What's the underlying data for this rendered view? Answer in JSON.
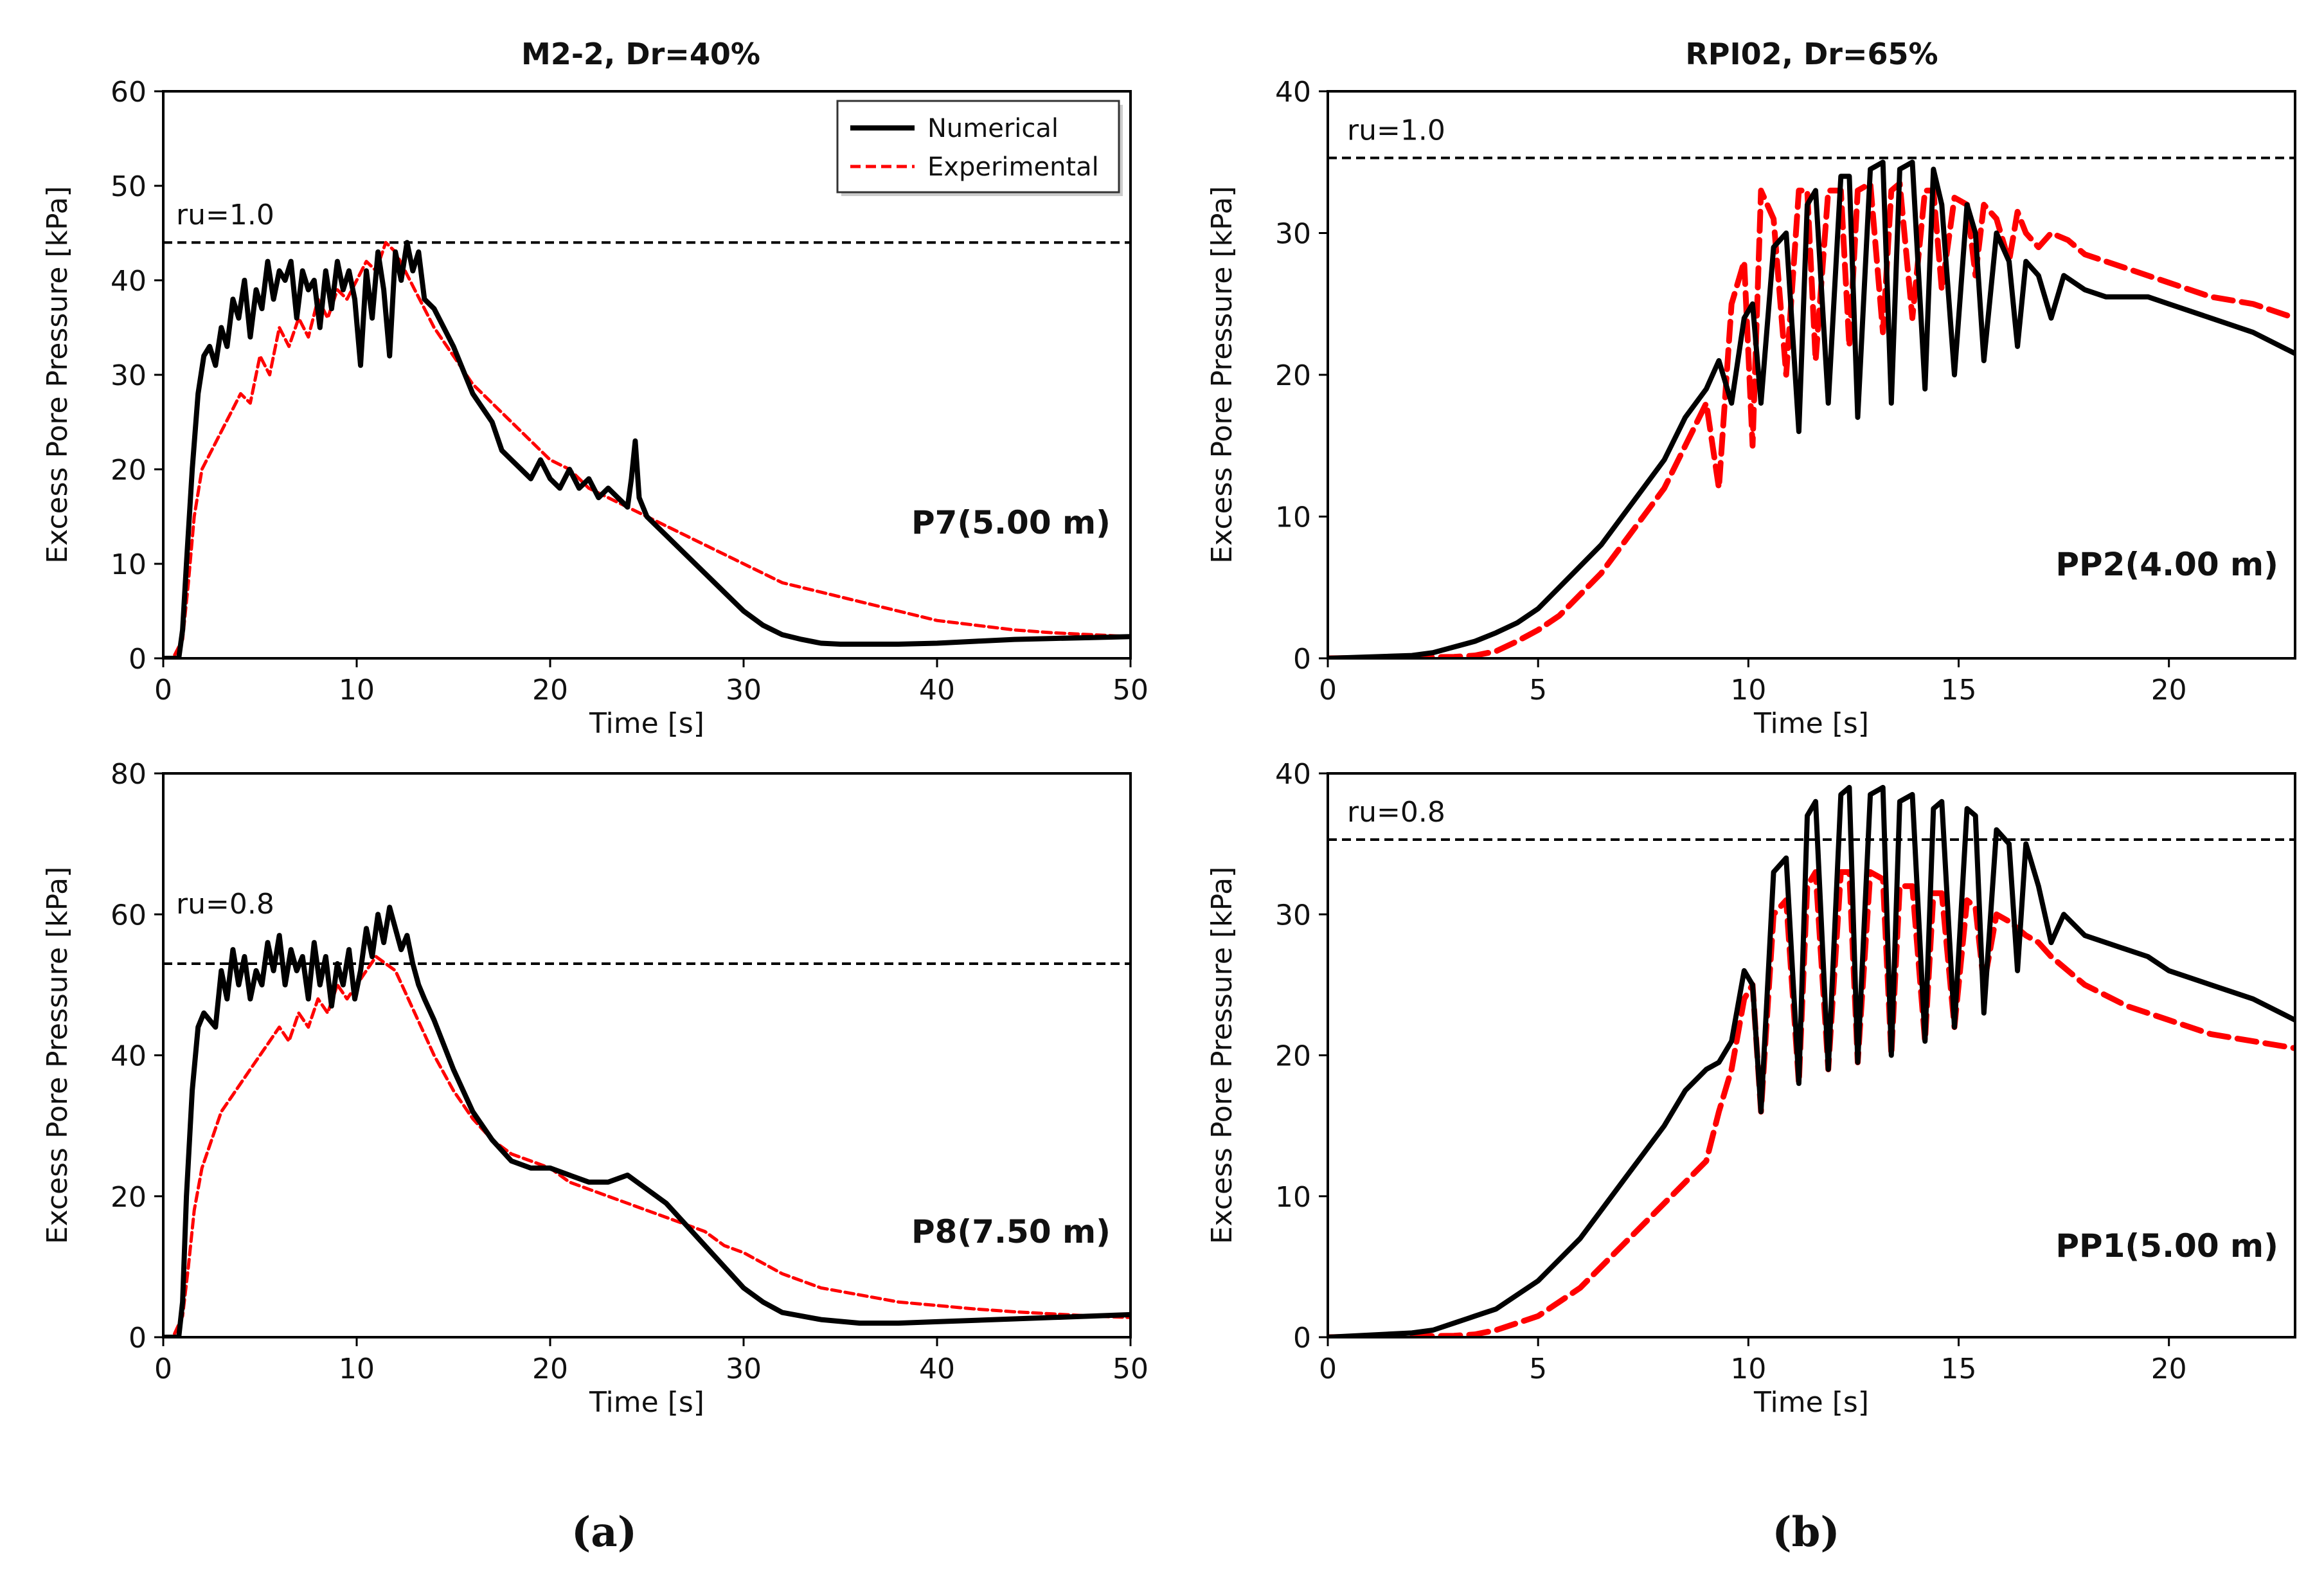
{
  "figure": {
    "column_titles": [
      "M2-2, Dr=40%",
      "RPI02, Dr=65%"
    ],
    "subfigure_labels": [
      "(a)",
      "(b)"
    ],
    "colors": {
      "numerical": "#000000",
      "experimental": "#ff0000",
      "reference": "#000000"
    }
  },
  "chart_data": [
    {
      "type": "line",
      "id": "a-top",
      "title": "M2-2, Dr=40%",
      "xlabel": "Time [s]",
      "ylabel": "Excess Pore Pressure [kPa]",
      "xlim": [
        0,
        50
      ],
      "ylim": [
        0,
        60
      ],
      "xticks": [
        0,
        10,
        20,
        30,
        40,
        50
      ],
      "yticks": [
        0,
        10,
        20,
        30,
        40,
        50,
        60
      ],
      "grid": false,
      "legend": {
        "placement": "top-right",
        "entries": [
          "Numerical",
          "Experimental"
        ]
      },
      "reference_line": {
        "y": 44,
        "label": "ru=1.0"
      },
      "annotation": "P7(5.00 m)",
      "series": [
        {
          "name": "Numerical",
          "x": [
            0,
            0.8,
            1.0,
            1.2,
            1.5,
            1.8,
            2.1,
            2.4,
            2.7,
            3,
            3.3,
            3.6,
            3.9,
            4.2,
            4.5,
            4.8,
            5.1,
            5.4,
            5.7,
            6,
            6.3,
            6.6,
            6.9,
            7.2,
            7.5,
            7.8,
            8.1,
            8.4,
            8.7,
            9,
            9.3,
            9.6,
            9.9,
            10.2,
            10.5,
            10.8,
            11.1,
            11.4,
            11.7,
            12,
            12.3,
            12.6,
            12.9,
            13.2,
            13.5,
            14,
            15,
            16,
            17,
            17.5,
            18,
            18.5,
            19,
            19.5,
            20,
            20.5,
            21,
            21.5,
            22,
            22.5,
            23,
            23.5,
            24,
            24.2,
            24.4,
            24.6,
            25,
            26,
            27,
            28,
            29,
            30,
            31,
            32,
            33,
            34,
            35,
            36,
            38,
            40,
            42,
            44,
            46,
            48,
            50
          ],
          "y": [
            0,
            0,
            3,
            10,
            20,
            28,
            32,
            33,
            31,
            35,
            33,
            38,
            36,
            40,
            34,
            39,
            37,
            42,
            38,
            41,
            40,
            42,
            36,
            41,
            39,
            40,
            35,
            41,
            37,
            42,
            39,
            41,
            38,
            31,
            41,
            36,
            43,
            39,
            32,
            43,
            40,
            44,
            41,
            43,
            38,
            37,
            33,
            28,
            25,
            22,
            21,
            20,
            19,
            21,
            19,
            18,
            20,
            18,
            19,
            17,
            18,
            17,
            16,
            19,
            23,
            17,
            15,
            13,
            11,
            9,
            7,
            5,
            3.5,
            2.5,
            2,
            1.6,
            1.5,
            1.5,
            1.5,
            1.6,
            1.8,
            2.0,
            2.1,
            2.2,
            2.3
          ]
        },
        {
          "name": "Experimental",
          "x": [
            0,
            0.5,
            1.0,
            1.3,
            1.6,
            2,
            2.5,
            3,
            3.5,
            4,
            4.5,
            5,
            5.5,
            6,
            6.5,
            7,
            7.5,
            8,
            8.5,
            9,
            9.5,
            10,
            10.5,
            11,
            11.5,
            12,
            12.5,
            13,
            13.5,
            14,
            15,
            16,
            17,
            18,
            19,
            20,
            21,
            22,
            23,
            24,
            25,
            26,
            27,
            28,
            29,
            30,
            32,
            34,
            36,
            38,
            40,
            42,
            44,
            46,
            48,
            50
          ],
          "y": [
            0,
            0,
            2,
            8,
            15,
            20,
            22,
            24,
            26,
            28,
            27,
            32,
            30,
            35,
            33,
            36,
            34,
            38,
            36,
            39,
            38,
            40,
            42,
            41,
            44,
            43,
            41,
            39,
            37,
            35,
            32,
            29,
            27,
            25,
            23,
            21,
            20,
            18,
            17,
            16,
            15,
            14,
            13,
            12,
            11,
            10,
            8,
            7,
            6,
            5,
            4,
            3.5,
            3,
            2.7,
            2.5,
            2.3
          ]
        }
      ]
    },
    {
      "type": "line",
      "id": "b-top",
      "title": "RPI02, Dr=65%",
      "xlabel": "Time [s]",
      "ylabel": "Excess Pore Pressure [kPa]",
      "xlim": [
        0,
        23
      ],
      "ylim": [
        0,
        40
      ],
      "xticks": [
        0,
        5,
        10,
        15,
        20
      ],
      "yticks": [
        0,
        10,
        20,
        30,
        40
      ],
      "grid": false,
      "reference_line": {
        "y": 35.3,
        "label": "ru=1.0"
      },
      "annotation": "PP2(4.00 m)",
      "series": [
        {
          "name": "Numerical",
          "x": [
            0,
            2,
            2.5,
            3,
            3.5,
            4,
            4.5,
            5,
            5.5,
            6,
            6.5,
            7,
            7.5,
            8,
            8.5,
            9,
            9.3,
            9.6,
            9.9,
            10.1,
            10.3,
            10.6,
            10.9,
            11.2,
            11.4,
            11.6,
            11.9,
            12.2,
            12.4,
            12.6,
            12.9,
            13.2,
            13.4,
            13.6,
            13.9,
            14.2,
            14.4,
            14.6,
            14.9,
            15.2,
            15.4,
            15.6,
            15.9,
            16.2,
            16.4,
            16.6,
            16.9,
            17.2,
            17.5,
            18,
            18.5,
            19,
            19.5,
            20,
            21,
            22,
            23
          ],
          "y": [
            0,
            0.2,
            0.4,
            0.8,
            1.2,
            1.8,
            2.5,
            3.5,
            5,
            6.5,
            8,
            10,
            12,
            14,
            17,
            19,
            21,
            18,
            24,
            25,
            18,
            29,
            30,
            16,
            32,
            33,
            18,
            34,
            34,
            17,
            34.5,
            35,
            18,
            34.5,
            35,
            19,
            34.5,
            32,
            20,
            32,
            30,
            21,
            30,
            28,
            22,
            28,
            27,
            24,
            27,
            26,
            25.5,
            25.5,
            25.5,
            25,
            24,
            23,
            21.5
          ]
        },
        {
          "name": "Experimental",
          "x": [
            0,
            3,
            3.5,
            4,
            4.5,
            5,
            5.5,
            6,
            6.5,
            7,
            7.5,
            8,
            8.5,
            9,
            9.3,
            9.6,
            9.9,
            10.1,
            10.3,
            10.6,
            10.9,
            11.2,
            11.4,
            11.6,
            11.9,
            12.2,
            12.4,
            12.6,
            12.9,
            13.2,
            13.4,
            13.6,
            13.9,
            14.2,
            14.4,
            14.6,
            14.9,
            15.2,
            15.4,
            15.6,
            15.9,
            16.2,
            16.4,
            16.6,
            16.9,
            17.2,
            17.6,
            18,
            19,
            20,
            21,
            22,
            23
          ],
          "y": [
            0,
            0.1,
            0.2,
            0.5,
            1.2,
            2,
            3,
            4.5,
            6,
            8,
            10,
            12,
            15,
            18,
            12,
            25,
            28,
            15,
            33,
            31,
            20,
            33,
            33,
            21,
            33,
            33,
            22,
            33,
            33.5,
            23,
            33,
            33.5,
            24,
            33,
            33,
            26,
            32.5,
            32,
            27,
            32,
            31,
            28,
            31.5,
            30,
            29,
            30,
            29.5,
            28.5,
            27.5,
            26.5,
            25.5,
            25,
            24
          ]
        }
      ]
    },
    {
      "type": "line",
      "id": "a-bottom",
      "xlabel": "Time [s]",
      "ylabel": "Excess Pore Pressure [kPa]",
      "xlim": [
        0,
        50
      ],
      "ylim": [
        0,
        80
      ],
      "xticks": [
        0,
        10,
        20,
        30,
        40,
        50
      ],
      "yticks": [
        0,
        20,
        40,
        60,
        80
      ],
      "grid": false,
      "reference_line": {
        "y": 53,
        "label": "ru=0.8"
      },
      "annotation": "P8(7.50 m)",
      "series": [
        {
          "name": "Numerical",
          "x": [
            0,
            0.8,
            1.0,
            1.2,
            1.5,
            1.8,
            2.1,
            2.4,
            2.7,
            3,
            3.3,
            3.6,
            3.9,
            4.2,
            4.5,
            4.8,
            5.1,
            5.4,
            5.7,
            6,
            6.3,
            6.6,
            6.9,
            7.2,
            7.5,
            7.8,
            8.1,
            8.4,
            8.7,
            9,
            9.3,
            9.6,
            9.9,
            10.2,
            10.5,
            10.8,
            11.1,
            11.4,
            11.7,
            12,
            12.3,
            12.6,
            12.9,
            13.2,
            13.5,
            14,
            15,
            16,
            17,
            18,
            19,
            20,
            21,
            22,
            23,
            24,
            24.5,
            25,
            26,
            27,
            28,
            29,
            30,
            31,
            32,
            34,
            36,
            38,
            40,
            42,
            44,
            46,
            48,
            50
          ],
          "y": [
            0,
            0,
            5,
            20,
            35,
            44,
            46,
            45,
            44,
            52,
            48,
            55,
            50,
            54,
            48,
            52,
            50,
            56,
            52,
            57,
            50,
            55,
            52,
            54,
            48,
            56,
            50,
            54,
            47,
            53,
            50,
            55,
            48,
            52,
            58,
            54,
            60,
            56,
            61,
            58,
            55,
            57,
            53,
            50,
            48,
            45,
            38,
            32,
            28,
            25,
            24,
            24,
            23,
            22,
            22,
            23,
            22,
            21,
            19,
            16,
            13,
            10,
            7,
            5,
            3.5,
            2.5,
            2,
            2,
            2.2,
            2.4,
            2.6,
            2.8,
            3,
            3.2
          ]
        },
        {
          "name": "Experimental",
          "x": [
            0,
            0.5,
            1.0,
            1.3,
            1.6,
            2,
            2.5,
            3,
            3.5,
            4,
            4.5,
            5,
            5.5,
            6,
            6.5,
            7,
            7.5,
            8,
            8.5,
            9,
            9.5,
            10,
            10.5,
            11,
            11.5,
            12,
            12.5,
            13,
            13.5,
            14,
            15,
            16,
            17,
            18,
            19,
            20,
            21,
            22,
            23,
            24,
            25,
            26,
            27,
            28,
            29,
            30,
            32,
            34,
            36,
            38,
            40,
            42,
            44,
            46,
            48,
            50
          ],
          "y": [
            0,
            0,
            3,
            10,
            18,
            24,
            28,
            32,
            34,
            36,
            38,
            40,
            42,
            44,
            42,
            46,
            44,
            48,
            46,
            50,
            48,
            50,
            52,
            54,
            53,
            52,
            49,
            46,
            43,
            40,
            35,
            31,
            28,
            26,
            25,
            24,
            22,
            21,
            20,
            19,
            18,
            17,
            16,
            15,
            13,
            12,
            9,
            7,
            6,
            5,
            4.5,
            4,
            3.6,
            3.3,
            3,
            2.8
          ]
        }
      ]
    },
    {
      "type": "line",
      "id": "b-bottom",
      "xlabel": "Time [s]",
      "ylabel": "Excess Pore Pressure [kPa]",
      "xlim": [
        0,
        23
      ],
      "ylim": [
        0,
        40
      ],
      "xticks": [
        0,
        5,
        10,
        15,
        20
      ],
      "yticks": [
        0,
        10,
        20,
        30,
        40
      ],
      "grid": false,
      "reference_line": {
        "y": 35.3,
        "label": "ru=0.8"
      },
      "annotation": "PP1(5.00 m)",
      "series": [
        {
          "name": "Numerical",
          "x": [
            0,
            2,
            2.5,
            3,
            3.5,
            4,
            4.5,
            5,
            5.5,
            6,
            6.5,
            7,
            7.5,
            8,
            8.5,
            9,
            9.3,
            9.6,
            9.9,
            10.1,
            10.3,
            10.6,
            10.9,
            11.2,
            11.4,
            11.6,
            11.9,
            12.2,
            12.4,
            12.6,
            12.9,
            13.2,
            13.4,
            13.6,
            13.9,
            14.2,
            14.4,
            14.6,
            14.9,
            15.2,
            15.4,
            15.6,
            15.9,
            16.2,
            16.4,
            16.6,
            16.9,
            17.2,
            17.5,
            18,
            18.5,
            19,
            19.5,
            20,
            21,
            22,
            23
          ],
          "y": [
            0,
            0.3,
            0.5,
            1,
            1.5,
            2,
            3,
            4,
            5.5,
            7,
            9,
            11,
            13,
            15,
            17.5,
            19,
            19.5,
            21,
            26,
            25,
            16,
            33,
            34,
            18,
            37,
            38,
            19,
            38.5,
            39,
            19.5,
            38.5,
            39,
            20,
            38,
            38.5,
            21,
            37.5,
            38,
            22,
            37.5,
            37,
            23,
            36,
            35,
            26,
            35,
            32,
            28,
            30,
            28.5,
            28,
            27.5,
            27,
            26,
            25,
            24,
            22.5
          ]
        },
        {
          "name": "Experimental",
          "x": [
            0,
            3,
            3.5,
            4,
            4.5,
            5,
            5.5,
            6,
            6.5,
            7,
            7.5,
            8,
            8.5,
            9,
            9.3,
            9.6,
            9.9,
            10.1,
            10.3,
            10.6,
            10.9,
            11.2,
            11.4,
            11.6,
            11.9,
            12.2,
            12.4,
            12.6,
            12.9,
            13.2,
            13.4,
            13.6,
            13.9,
            14.2,
            14.4,
            14.6,
            14.9,
            15.2,
            15.4,
            15.6,
            15.9,
            16.2,
            16.4,
            16.6,
            16.9,
            17.2,
            17.6,
            18,
            19,
            20,
            21,
            22,
            23
          ],
          "y": [
            0,
            0.1,
            0.2,
            0.5,
            1,
            1.5,
            2.5,
            3.5,
            5,
            6.5,
            8,
            9.5,
            11,
            12.5,
            16,
            19,
            24,
            25,
            16,
            30,
            31,
            18,
            32,
            33,
            19,
            33,
            33,
            19.5,
            33,
            32.5,
            20,
            32,
            32,
            21,
            31.5,
            31.5,
            22,
            31,
            30.5,
            25,
            30,
            29.5,
            29,
            28.5,
            28,
            27,
            26,
            25,
            23.5,
            22.5,
            21.5,
            21,
            20.5
          ]
        }
      ]
    }
  ]
}
